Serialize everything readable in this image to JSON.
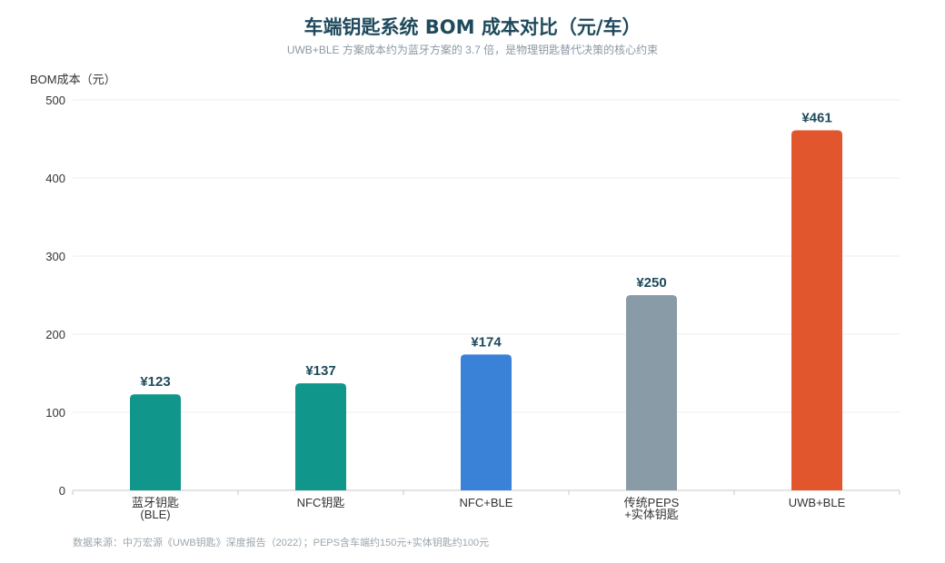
{
  "chart_data": {
    "type": "bar",
    "title": "车端钥匙系统 BOM 成本对比（元/车）",
    "subtitle": "UWB+BLE 方案成本约为蓝牙方案的 3.7 倍，是物理钥匙替代决策的核心约束",
    "ylabel": "BOM成本（元）",
    "ylim": [
      0,
      500
    ],
    "yticks": [
      0,
      100,
      200,
      300,
      400,
      500
    ],
    "grid": true,
    "categories": [
      [
        "蓝牙钥匙",
        "(BLE)"
      ],
      [
        "NFC钥匙"
      ],
      [
        "NFC+BLE"
      ],
      [
        "传统PEPS",
        "+实体钥匙"
      ],
      [
        "UWB+BLE"
      ]
    ],
    "values": [
      123,
      137,
      174,
      250,
      461
    ],
    "value_labels": [
      "¥123",
      "¥137",
      "¥174",
      "¥250",
      "¥461"
    ],
    "colors": [
      "#10968a",
      "#10968a",
      "#3a82d8",
      "#8a9ba8",
      "#e2562e"
    ],
    "source": "数据来源：中万宏源《UWB钥匙》深度报告（2022）；PEPS含车端约150元+实体钥匙约100元"
  }
}
